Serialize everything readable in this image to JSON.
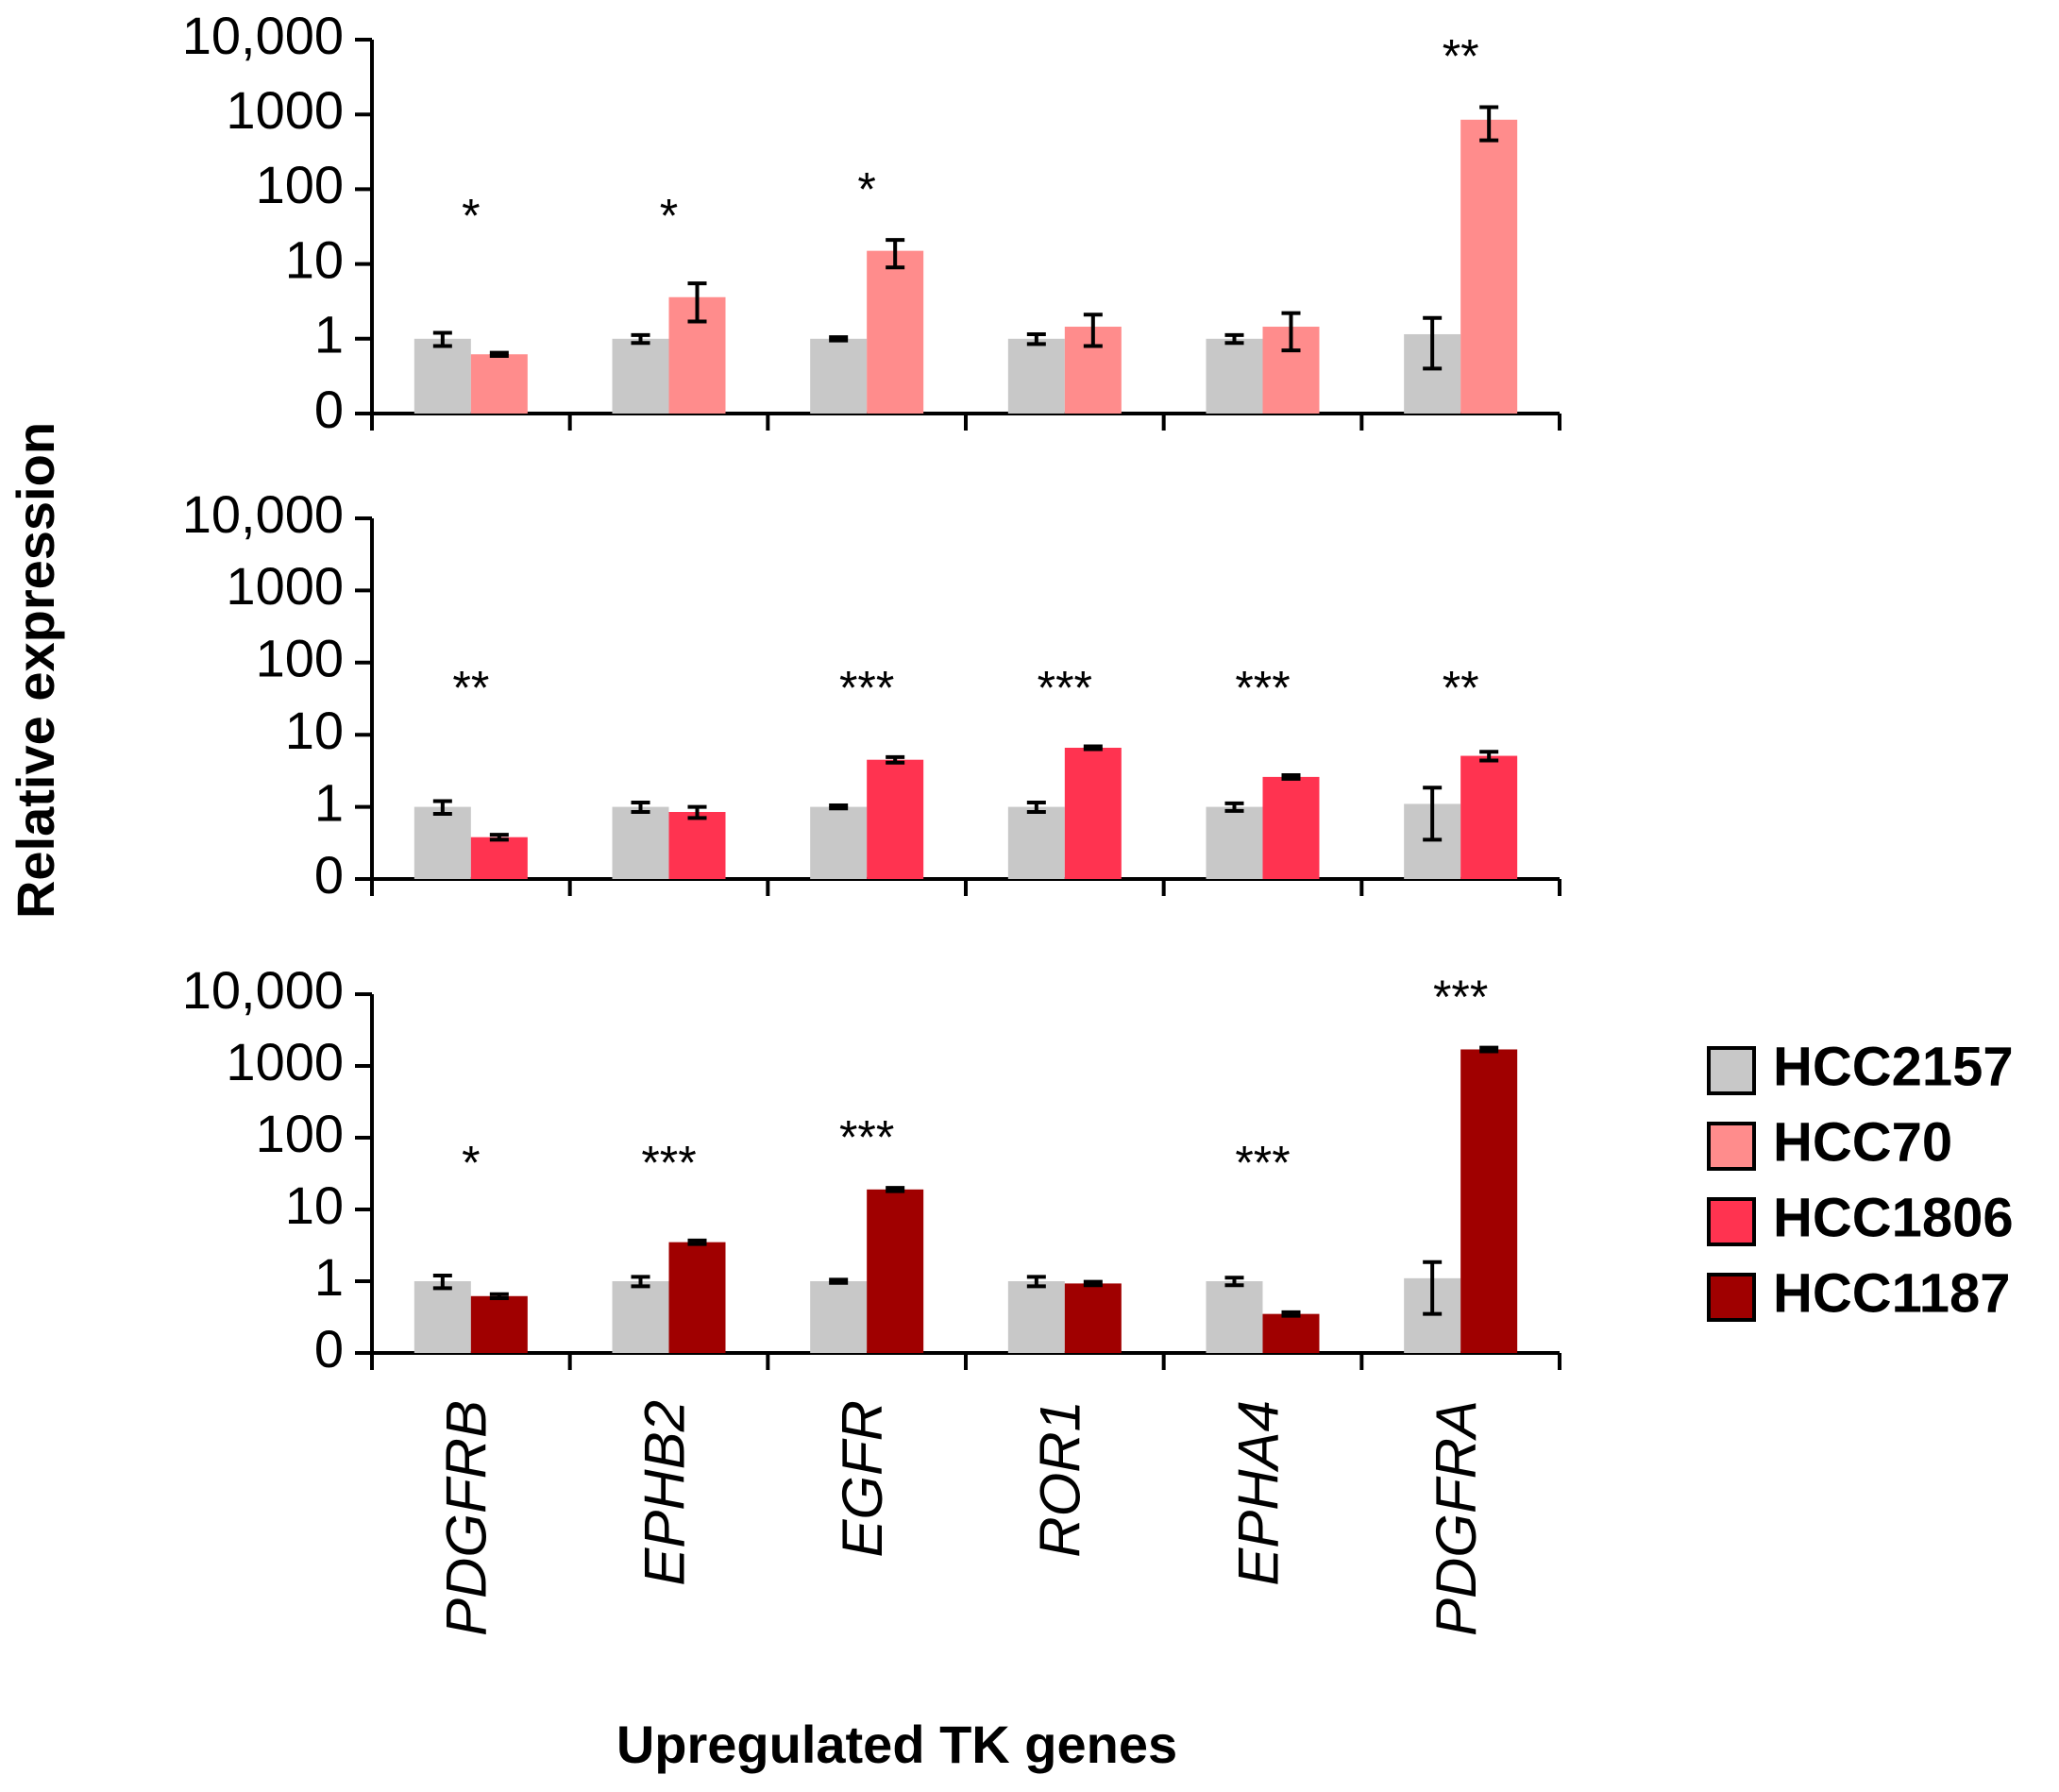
{
  "chart_data": [
    {
      "type": "bar",
      "log_scale": true,
      "categories": [
        "PDGFRB",
        "EPHB2",
        "EGFR",
        "ROR1",
        "EPHA4",
        "PDGFRA"
      ],
      "series": [
        {
          "name": "HCC2157",
          "color": "#c8c8c8",
          "values": [
            1,
            1,
            1,
            1,
            1,
            1.15
          ],
          "errors": [
            0.2,
            0.12,
            0.05,
            0.15,
            0.12,
            0.75
          ]
        },
        {
          "name": "HCC70",
          "color": "#ff8c8c",
          "values": [
            0.62,
            3.6,
            15,
            1.45,
            1.45,
            850
          ],
          "errors": [
            0.03,
            1.9,
            6,
            0.65,
            0.75,
            400
          ]
        }
      ],
      "annotations": [
        "*",
        "*",
        "*",
        null,
        null,
        "**"
      ],
      "ylim": [
        0.1,
        10000
      ],
      "yticks": [
        {
          "value": 0.1,
          "label": "0"
        },
        1,
        10,
        100,
        1000,
        {
          "value": 10000,
          "label": "10,000"
        }
      ]
    },
    {
      "type": "bar",
      "log_scale": true,
      "categories": [
        "PDGFRB",
        "EPHB2",
        "EGFR",
        "ROR1",
        "EPHA4",
        "PDGFRA"
      ],
      "series": [
        {
          "name": "HCC2157",
          "color": "#c8c8c8",
          "values": [
            1,
            1,
            1,
            1,
            1,
            1.1
          ],
          "errors": [
            0.2,
            0.15,
            0.05,
            0.15,
            0.12,
            0.75
          ]
        },
        {
          "name": "HCC1806",
          "color": "#ff3350",
          "values": [
            0.38,
            0.85,
            4.5,
            6.6,
            2.6,
            5.1
          ],
          "errors": [
            0.03,
            0.15,
            0.4,
            0.3,
            0.15,
            0.7
          ]
        }
      ],
      "annotations": [
        "**",
        null,
        "***",
        "***",
        "***",
        "**"
      ],
      "ylim": [
        0.1,
        10000
      ],
      "yticks": [
        {
          "value": 0.1,
          "label": "0"
        },
        1,
        10,
        100,
        1000,
        {
          "value": 10000,
          "label": "10,000"
        }
      ]
    },
    {
      "type": "bar",
      "log_scale": true,
      "categories": [
        "PDGFRB",
        "EPHB2",
        "EGFR",
        "ROR1",
        "EPHA4",
        "PDGFRA"
      ],
      "series": [
        {
          "name": "HCC2157",
          "color": "#c8c8c8",
          "values": [
            1,
            1,
            1,
            1,
            1,
            1.1
          ],
          "errors": [
            0.2,
            0.15,
            0.05,
            0.15,
            0.12,
            0.75
          ]
        },
        {
          "name": "HCC1187",
          "color": "#a00000",
          "values": [
            0.62,
            3.5,
            19,
            0.93,
            0.35,
            1700
          ],
          "errors": [
            0.04,
            0.2,
            1,
            0.05,
            0.02,
            100
          ]
        }
      ],
      "annotations": [
        "*",
        "***",
        "***",
        null,
        "***",
        "***"
      ],
      "ylim": [
        0.1,
        10000
      ],
      "yticks": [
        {
          "value": 0.1,
          "label": "0"
        },
        1,
        10,
        100,
        1000,
        {
          "value": 10000,
          "label": "10,000"
        }
      ],
      "xlabel": "Upregulated TK genes"
    }
  ],
  "ylabel": "Relative expression"
}
